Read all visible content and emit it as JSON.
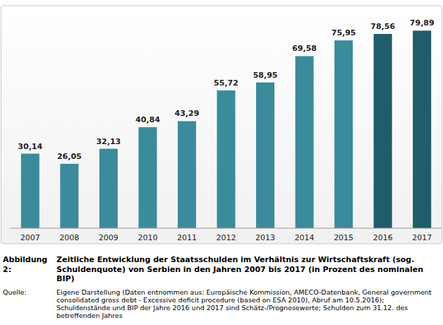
{
  "chart_data": {
    "type": "bar",
    "figure_label": "Abbildung 2:",
    "title": "Zeitliche Entwicklung der Staatsschulden im Verhältnis zur Wirtschaftskraft (sog. Schuldenquote) von Serbien in den Jahren 2007 bis 2017 (in Prozent des nominalen BIP)",
    "source_label": "Quelle:",
    "source": "Eigene Darstellung (Daten entnommen aus: Europäische Kommission, AMECO-Datenbank, General government consolidated gross debt - Excessive deficit procedure (based on ESA 2010), Abruf am 10.5.2016);  Schuldenstände und BIP der Jahre 2016 und 2017 sind Schätz-/Prognosewerte; Schulden zum 31.12. des betreffenden Jahres",
    "categories": [
      "2007",
      "2008",
      "2009",
      "2010",
      "2011",
      "2012",
      "2013",
      "2014",
      "2015",
      "2016",
      "2017"
    ],
    "values": [
      30.14,
      26.05,
      32.13,
      40.84,
      43.29,
      55.72,
      58.95,
      69.58,
      75.95,
      78.56,
      79.89
    ],
    "value_labels": [
      "30,14",
      "26,05",
      "32,13",
      "40,84",
      "43,29",
      "55,72",
      "58,95",
      "69,58",
      "75,95",
      "78,56",
      "79,89"
    ],
    "colors": [
      "#3a8b9c",
      "#3a8b9c",
      "#3a8b9c",
      "#3a8b9c",
      "#3a8b9c",
      "#3a8b9c",
      "#3a8b9c",
      "#3a8b9c",
      "#3a8b9c",
      "#1e5d69",
      "#1e5d69"
    ],
    "ylim": [
      0,
      90
    ],
    "grid": false,
    "data_labels": true,
    "tick_labels": "x"
  }
}
